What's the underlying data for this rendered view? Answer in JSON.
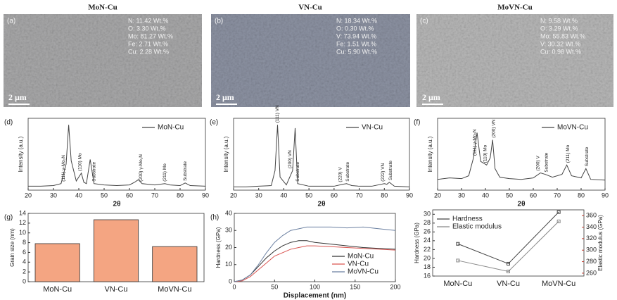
{
  "sem_panels": [
    {
      "title": "MoN-Cu",
      "label": "(a)",
      "composition": [
        "N: 11.42 Wt.%",
        "O: 3.30 Wt.%",
        "Mo: 81.27 Wt.%",
        "Fe: 2.71 Wt.%",
        "Cu: 2.28 Wt.%"
      ],
      "scale_bar": "2 μm"
    },
    {
      "title": "VN-Cu",
      "label": "(b)",
      "composition": [
        "N: 18.34 Wt.%",
        "O: 0.30 Wt.%",
        "V: 73.94 Wt.%",
        "Fe: 1.51 Wt.%",
        "Cu: 5.90 Wt.%"
      ],
      "scale_bar": "2 μm"
    },
    {
      "title": "MoVN-Cu",
      "label": "(c)",
      "composition": [
        "N: 9.58 Wt.%",
        "O: 3.29 Wt.%",
        "Mo: 55.83 Wt.%",
        "V: 30.32 Wt.%",
        "Cu: 0.98 Wt.%"
      ],
      "scale_bar": "2 μm"
    }
  ],
  "chart_data": [
    {
      "type": "line",
      "panel_label": "(d)",
      "x_label": "2θ",
      "y_label": "Intensity (a.u.)",
      "x": [
        20,
        25,
        30,
        33,
        35,
        36,
        37,
        39,
        41,
        42,
        43,
        44.5,
        46,
        50,
        55,
        60,
        62,
        63.5,
        65,
        70,
        74,
        76,
        80,
        82,
        84,
        90
      ],
      "series": [
        {
          "name": "MoN-Cu",
          "color": "#444444",
          "values": [
            6,
            6,
            7,
            10,
            40,
            100,
            45,
            14,
            26,
            12,
            10,
            47,
            10,
            8,
            7,
            8,
            12,
            16,
            10,
            8,
            10,
            8,
            7,
            11,
            7,
            6
          ]
        }
      ],
      "xlim": [
        20,
        90
      ],
      "xticks": [
        20,
        30,
        40,
        50,
        60,
        70,
        80,
        90
      ],
      "ylim": [
        0,
        110
      ],
      "legend": "upper right",
      "annotations": [
        {
          "text": "(111) γ-Mo₂N",
          "x": 34,
          "color": "#c0392b"
        },
        {
          "text": "(110) Mo",
          "x": 40.5,
          "color": "#222222"
        },
        {
          "text": "Substrate",
          "x": 46,
          "color": "#222222"
        },
        {
          "text": "(200) γ-Mo₂N",
          "x": 64.5,
          "color": "#c0392b"
        },
        {
          "text": "(211) Mo",
          "x": 74,
          "color": "#222222"
        },
        {
          "text": "Substrate",
          "x": 82,
          "color": "#222222"
        }
      ]
    },
    {
      "type": "line",
      "panel_label": "(e)",
      "x_label": "2θ",
      "y_label": "Intensity (a.u.)",
      "x": [
        20,
        25,
        30,
        35,
        36.5,
        37.5,
        38.5,
        41,
        43.5,
        44.5,
        45.5,
        50,
        55,
        60,
        63.5,
        65,
        67,
        70,
        75,
        80,
        81,
        82,
        84,
        90
      ],
      "series": [
        {
          "name": "VN-Cu",
          "color": "#444444",
          "values": [
            5,
            5,
            6,
            7,
            30,
            100,
            20,
            8,
            30,
            95,
            10,
            6,
            6,
            6,
            9,
            10,
            7,
            6,
            6,
            10,
            9,
            12,
            6,
            5
          ]
        }
      ],
      "xlim": [
        20,
        90
      ],
      "xticks": [
        20,
        30,
        40,
        50,
        60,
        70,
        80,
        90
      ],
      "ylim": [
        0,
        110
      ],
      "legend": "upper right",
      "annotations": [
        {
          "text": "(111) VN",
          "x": 37.5,
          "color": "#c0392b"
        },
        {
          "text": "(200) VN",
          "x": 42.5,
          "color": "#c0392b"
        },
        {
          "text": "Substrate",
          "x": 45.5,
          "color": "#222222"
        },
        {
          "text": "(220) V",
          "x": 62.5,
          "color": "#222222"
        },
        {
          "text": "Substrate",
          "x": 65.5,
          "color": "#222222"
        },
        {
          "text": "(222) VN",
          "x": 79.5,
          "color": "#c0392b"
        },
        {
          "text": "Substrate",
          "x": 82.5,
          "color": "#222222"
        }
      ]
    },
    {
      "type": "line",
      "panel_label": "(f)",
      "x_label": "2θ",
      "y_label": "Intensity (a.u.)",
      "x": [
        20,
        25,
        30,
        33,
        35,
        36.5,
        38,
        40.5,
        42,
        43,
        44,
        46,
        50,
        55,
        60,
        63,
        65,
        68,
        72,
        74,
        76,
        80,
        82,
        84,
        90
      ],
      "series": [
        {
          "name": "MoVN-Cu",
          "color": "#444444",
          "values": [
            15,
            17,
            16,
            20,
            45,
            80,
            40,
            35,
            45,
            70,
            30,
            18,
            16,
            15,
            17,
            24,
            22,
            18,
            22,
            35,
            20,
            17,
            30,
            15,
            14
          ]
        }
      ],
      "xlim": [
        20,
        90
      ],
      "xticks": [
        20,
        30,
        40,
        50,
        60,
        70,
        80,
        90
      ],
      "ylim": [
        0,
        100
      ],
      "legend": "upper right",
      "annotations": [
        {
          "text": "(111) γ-Mo₂N",
          "x": 35.5,
          "color": "#c0392b"
        },
        {
          "text": "(110) Mo",
          "x": 40,
          "color": "#222222"
        },
        {
          "text": "(200) VN",
          "x": 43.5,
          "color": "#222222"
        },
        {
          "text": "(200) V",
          "x": 62,
          "color": "#222222"
        },
        {
          "text": "Substrate",
          "x": 65.5,
          "color": "#222222"
        },
        {
          "text": "(211) Mo",
          "x": 74.5,
          "color": "#222222"
        },
        {
          "text": "Substrate",
          "x": 82.5,
          "color": "#222222"
        }
      ]
    },
    {
      "type": "bar",
      "panel_label": "(g)",
      "y_label": "Grain size (nm)",
      "categories": [
        "MoN-Cu",
        "VN-Cu",
        "MoVN-Cu"
      ],
      "values": [
        7.8,
        12.7,
        7.2
      ],
      "color": "#f4a582",
      "ylim": [
        0,
        14
      ],
      "yticks": [
        0,
        2,
        4,
        6,
        8,
        10,
        12,
        14
      ]
    },
    {
      "type": "line",
      "panel_label": "(h)",
      "x_label": "Displacement (nm)",
      "y_label": "Hardness (GPa)",
      "x": [
        0,
        10,
        20,
        30,
        40,
        50,
        60,
        70,
        80,
        90,
        100,
        120,
        140,
        160,
        180,
        200
      ],
      "series": [
        {
          "name": "MoN-Cu",
          "color": "#333333",
          "values": [
            0,
            1,
            4,
            9,
            14,
            18,
            21,
            23,
            24,
            24,
            23,
            22,
            21,
            20,
            19.5,
            19
          ]
        },
        {
          "name": "VN-Cu",
          "color": "#d9534f",
          "values": [
            0,
            0.5,
            3,
            7,
            11,
            15,
            17,
            19,
            20,
            21,
            21,
            20.5,
            20,
            19.5,
            19,
            18.5
          ]
        },
        {
          "name": "MoVN-Cu",
          "color": "#6a7fa0",
          "values": [
            0,
            1,
            4,
            10,
            17,
            23,
            27,
            30,
            31,
            32,
            32,
            32,
            31.5,
            32,
            31,
            30
          ]
        }
      ],
      "xlim": [
        0,
        200
      ],
      "xticks": [
        0,
        50,
        100,
        150,
        200
      ],
      "ylim": [
        0,
        40
      ],
      "yticks": [
        0,
        10,
        20,
        30,
        40
      ],
      "legend": "lower right"
    },
    {
      "type": "line",
      "y_label": "Hardness (GPa)",
      "y2_label": "Elastic modulus (GPa)",
      "categories": [
        "MoN-Cu",
        "VN-Cu",
        "MoVN-Cu"
      ],
      "series": [
        {
          "name": "Hardness",
          "color": "#444444",
          "values": [
            23.3,
            18.8,
            30.5
          ]
        },
        {
          "name": "Elastic modulus",
          "color": "#888888",
          "axis": "y2",
          "values": [
            282,
            263,
            350
          ]
        }
      ],
      "ylim": [
        16,
        31
      ],
      "yticks": [
        16,
        18,
        20,
        22,
        24,
        26,
        28,
        30
      ],
      "y2lim": [
        255,
        370
      ],
      "y2ticks": [
        260,
        280,
        300,
        320,
        340,
        360
      ],
      "y2_color": "#c0392b",
      "legend": "upper left"
    }
  ]
}
